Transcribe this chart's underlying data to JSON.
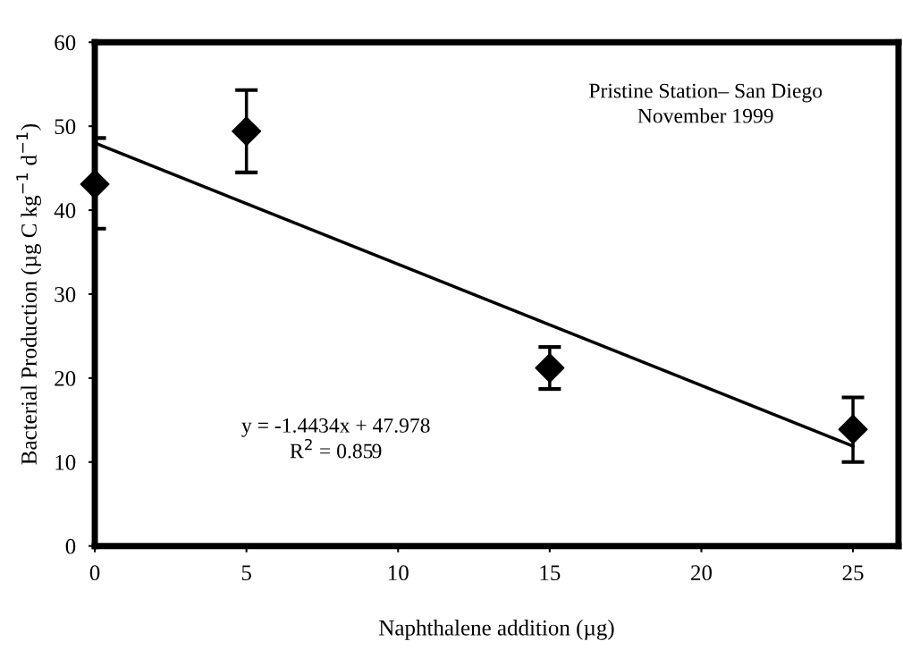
{
  "chart_data": {
    "type": "scatter",
    "xlabel": "Naphthalene addition (µg)",
    "ylabel": "Bacterial Production (µg C kg$^{−1}$ d$^{−1}$)",
    "x": [
      0,
      5,
      15,
      25
    ],
    "xlim": [
      0,
      26.5
    ],
    "xticks": [
      0,
      5,
      10,
      15,
      20,
      25
    ],
    "ylim": [
      0,
      60
    ],
    "yticks": [
      0,
      10,
      20,
      30,
      40,
      50,
      60
    ],
    "grid": false,
    "legend": false,
    "series": [
      {
        "color": "#000000",
        "marker": "diamond",
        "values": [
          43.1,
          49.4,
          21.2,
          13.9
        ],
        "errors": [
          [
            37.8,
            48.6
          ],
          [
            44.5,
            54.3
          ],
          [
            18.7,
            23.7
          ],
          [
            10.0,
            17.7
          ]
        ]
      },
      {
        "type": "line",
        "color": "#000000",
        "marker": "none",
        "line_style": "solid",
        "x": [
          0,
          25
        ],
        "values": [
          48.0,
          11.9
        ]
      }
    ],
    "annotations": [
      "Pristine Station– San Diego\nNovember 1999",
      "y = -1.4434x + 47.978\nR$^{2}$ = 0.859"
    ]
  }
}
